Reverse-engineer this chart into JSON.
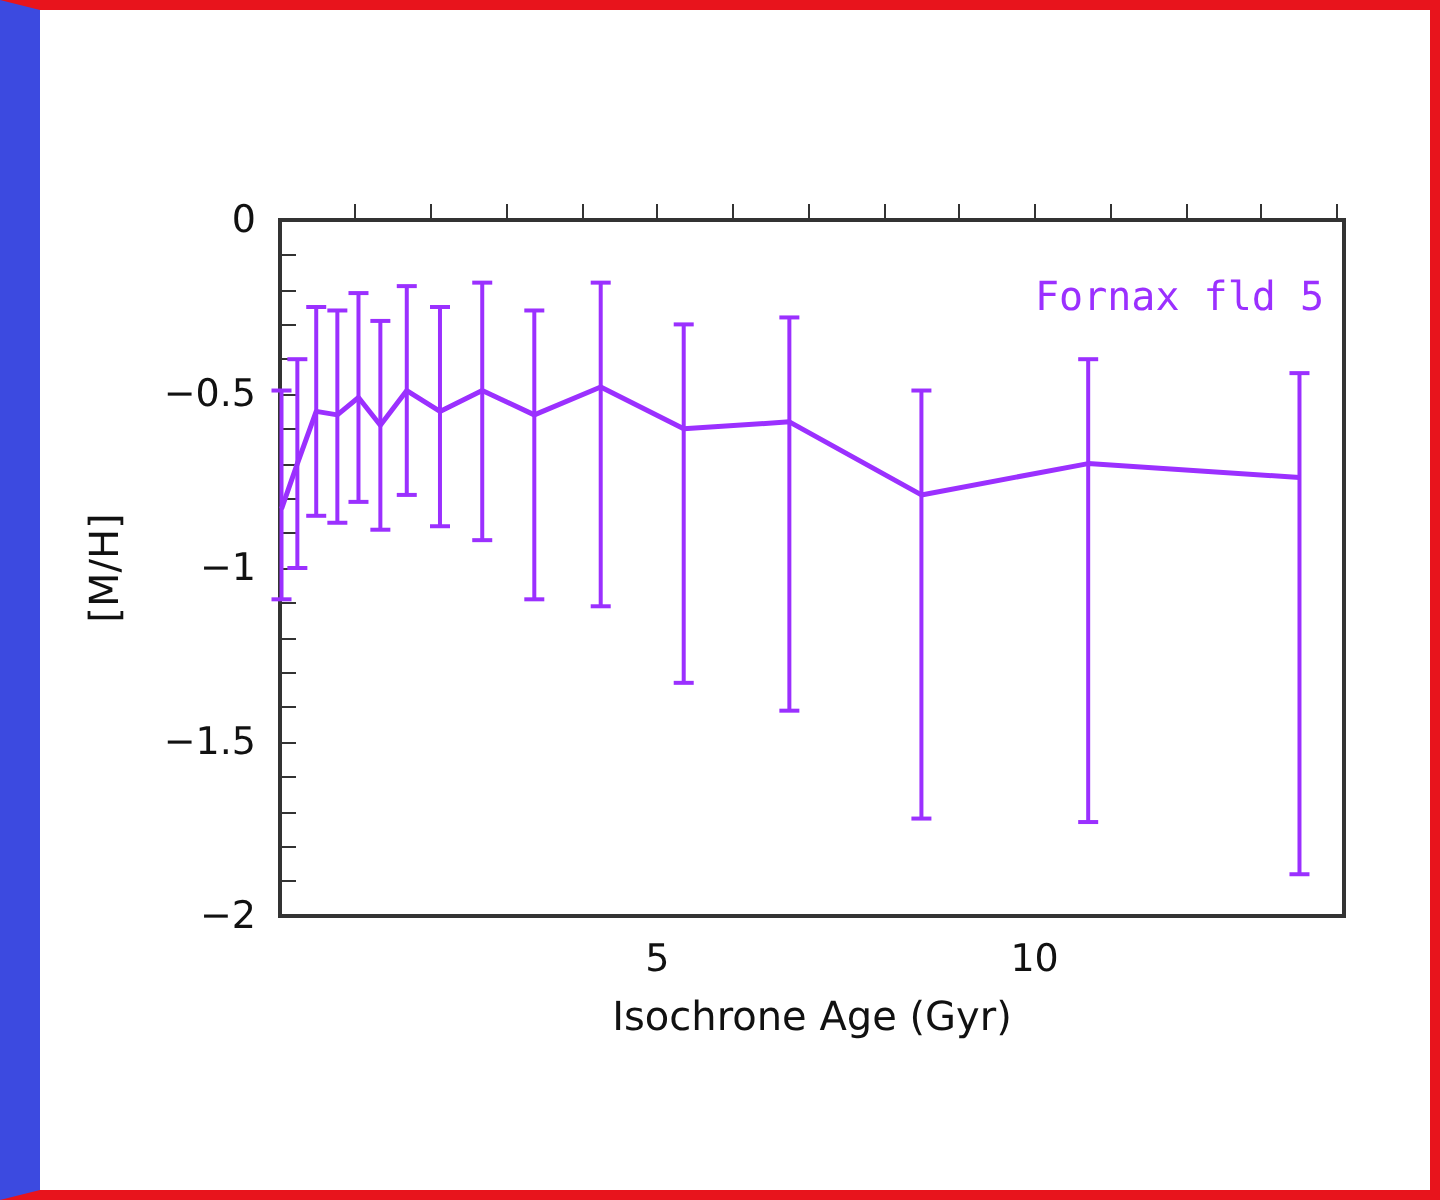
{
  "chart_data": {
    "type": "line",
    "xlabel": "Isochrone Age (Gyr)",
    "ylabel": "[M/H]",
    "x": [
      0.02,
      0.23,
      0.48,
      0.76,
      1.04,
      1.33,
      1.68,
      2.12,
      2.68,
      3.37,
      4.25,
      5.35,
      6.75,
      8.5,
      10.71,
      13.51
    ],
    "series": [
      {
        "name": "Fornax fld 5",
        "color": "#9b30ff",
        "values": [
          -0.83,
          -0.7,
          -0.55,
          -0.56,
          -0.51,
          -0.59,
          -0.49,
          -0.55,
          -0.49,
          -0.56,
          -0.48,
          -0.6,
          -0.58,
          -0.79,
          -0.7,
          -0.74
        ],
        "errors": [
          [
            -1.09,
            -0.49
          ],
          [
            -1.0,
            -0.4
          ],
          [
            -0.85,
            -0.25
          ],
          [
            -0.87,
            -0.26
          ],
          [
            -0.81,
            -0.21
          ],
          [
            -0.89,
            -0.29
          ],
          [
            -0.79,
            -0.19
          ],
          [
            -0.88,
            -0.25
          ],
          [
            -0.92,
            -0.18
          ],
          [
            -1.09,
            -0.26
          ],
          [
            -1.11,
            -0.18
          ],
          [
            -1.33,
            -0.3
          ],
          [
            -1.41,
            -0.28
          ],
          [
            -1.72,
            -0.49
          ],
          [
            -1.73,
            -0.4
          ],
          [
            -1.88,
            -0.44
          ]
        ]
      }
    ],
    "xlim": [
      0,
      14.1
    ],
    "xticks": [
      {
        "value": 1,
        "label": null
      },
      {
        "value": 2,
        "label": null
      },
      {
        "value": 3,
        "label": null
      },
      {
        "value": 4,
        "label": null
      },
      5,
      {
        "value": 6,
        "label": null
      },
      {
        "value": 7,
        "label": null
      },
      {
        "value": 8,
        "label": null
      },
      {
        "value": 9,
        "label": null
      },
      10,
      {
        "value": 11,
        "label": null
      },
      {
        "value": 12,
        "label": null
      },
      {
        "value": 13,
        "label": null
      },
      {
        "value": 14,
        "label": null
      }
    ],
    "ylim": [
      -2,
      0
    ],
    "yticks": [
      {
        "value": -2,
        "label": "−2"
      },
      {
        "value": -1.9,
        "label": null
      },
      {
        "value": -1.8,
        "label": null
      },
      {
        "value": -1.7,
        "label": null
      },
      {
        "value": -1.6,
        "label": null
      },
      {
        "value": -1.5,
        "label": "−1.5"
      },
      {
        "value": -1.4,
        "label": null
      },
      {
        "value": -1.3,
        "label": null
      },
      {
        "value": -1.2,
        "label": null
      },
      {
        "value": -1.1,
        "label": null
      },
      {
        "value": -1,
        "label": "−1"
      },
      {
        "value": -0.9,
        "label": null
      },
      {
        "value": -0.8,
        "label": null
      },
      {
        "value": -0.7,
        "label": null
      },
      {
        "value": -0.6,
        "label": null
      },
      {
        "value": -0.5,
        "label": "−0.5"
      },
      {
        "value": -0.4,
        "label": null
      },
      {
        "value": -0.3,
        "label": null
      },
      {
        "value": -0.2,
        "label": null
      },
      {
        "value": -0.1,
        "label": null
      },
      0
    ],
    "legend": "top right"
  }
}
